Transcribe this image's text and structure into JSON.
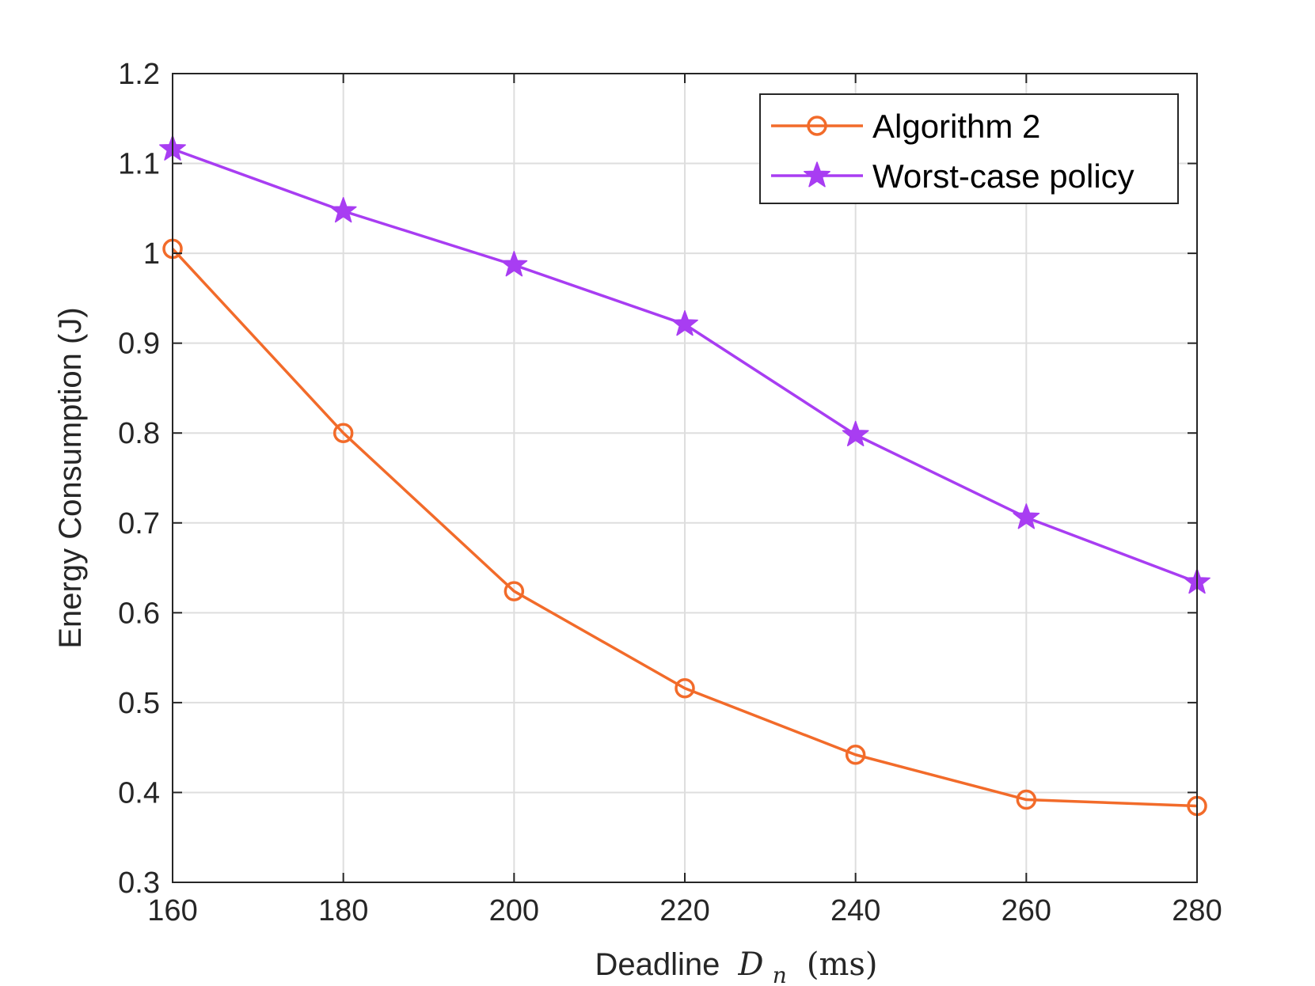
{
  "chart_data": {
    "type": "line",
    "xlabel_text": "Deadline",
    "xlabel_math_symbol": "D",
    "xlabel_math_subscript": "n",
    "xlabel_units": "(ms)",
    "ylabel": "Energy Consumption (J)",
    "x": [
      160,
      180,
      200,
      220,
      240,
      260,
      280
    ],
    "xlim": [
      160,
      280
    ],
    "ylim": [
      0.3,
      1.2
    ],
    "xticks": [
      "160",
      "180",
      "200",
      "220",
      "240",
      "260",
      "280"
    ],
    "yticks": [
      "0.3",
      "0.4",
      "0.5",
      "0.6",
      "0.7",
      "0.8",
      "0.9",
      "1",
      "1.1",
      "1.2"
    ],
    "grid": true,
    "legend_position": "top-right",
    "series": [
      {
        "name": "Algorithm 2",
        "color": "#f26b2a",
        "marker": "circle",
        "values": [
          1.005,
          0.8,
          0.624,
          0.516,
          0.442,
          0.392,
          0.385
        ]
      },
      {
        "name": "Worst-case policy",
        "color": "#a83df2",
        "marker": "star",
        "values": [
          1.116,
          1.047,
          0.987,
          0.921,
          0.798,
          0.706,
          0.634
        ]
      }
    ]
  }
}
